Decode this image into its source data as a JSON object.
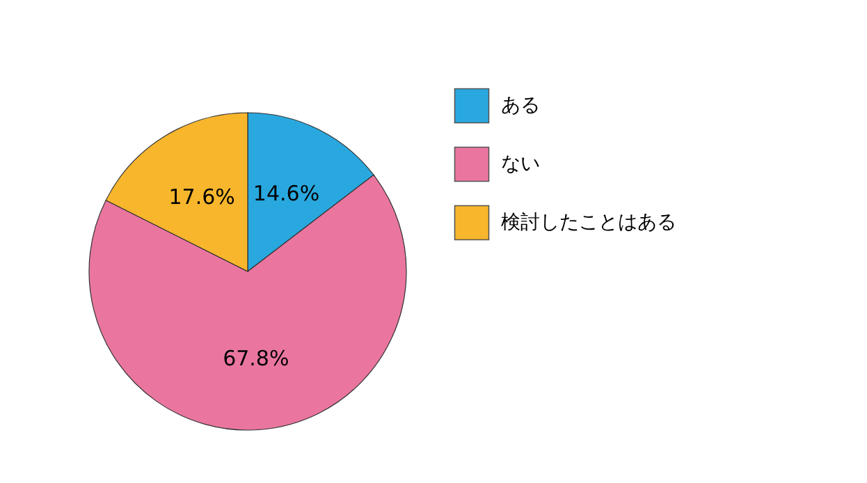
{
  "chart_data": {
    "type": "pie",
    "categories": [
      "ある",
      "ない",
      "検討したことはある"
    ],
    "values": [
      14.6,
      67.8,
      17.6
    ],
    "colors": [
      "#29a8df",
      "#ea76a0",
      "#f8b62d"
    ],
    "value_labels": [
      "14.6%",
      "67.8%",
      "17.6%"
    ],
    "legend": "right"
  }
}
